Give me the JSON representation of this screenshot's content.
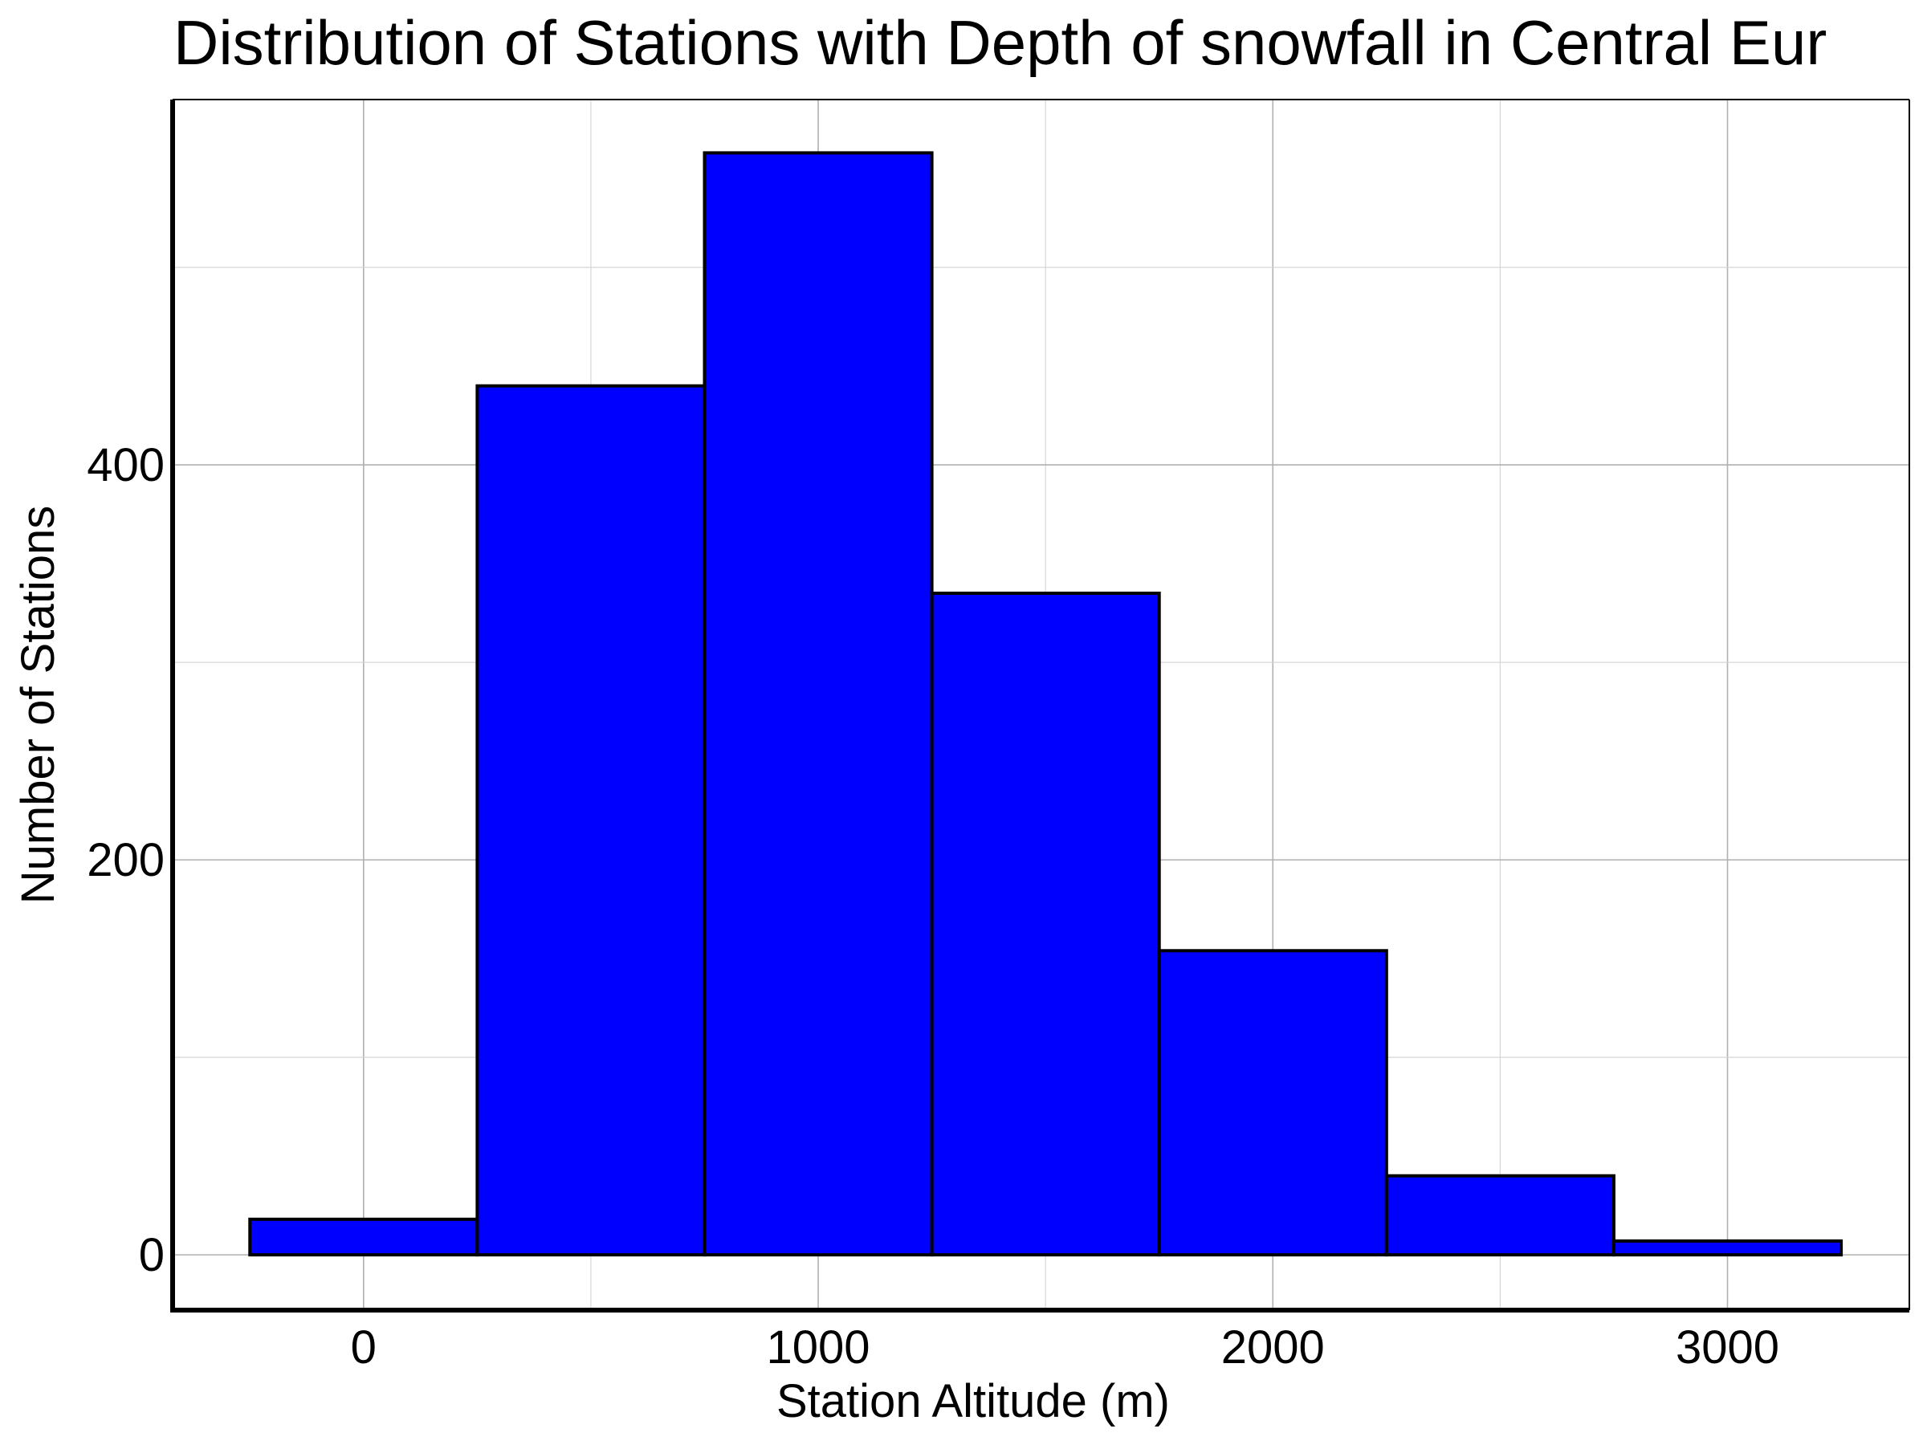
{
  "chart_data": {
    "type": "histogram",
    "title": "Distribution of Stations with Depth of snowfall in Central Eur",
    "xlabel": "Station Altitude (m)",
    "ylabel": "Number of Stations",
    "bin_width": 500,
    "bins": [
      {
        "start": -250,
        "end": 250,
        "count": 18
      },
      {
        "start": 250,
        "end": 750,
        "count": 440
      },
      {
        "start": 750,
        "end": 1250,
        "count": 558
      },
      {
        "start": 1250,
        "end": 1750,
        "count": 335
      },
      {
        "start": 1750,
        "end": 2250,
        "count": 154
      },
      {
        "start": 2250,
        "end": 2750,
        "count": 40
      },
      {
        "start": 2750,
        "end": 3250,
        "count": 7
      }
    ],
    "xlim": [
      -420,
      3400
    ],
    "ylim": [
      -28,
      585
    ],
    "x_ticks": [
      0,
      1000,
      2000,
      3000
    ],
    "x_tick_labels": [
      "0",
      "1000",
      "2000",
      "3000"
    ],
    "x_minor_grid": [
      500,
      1500,
      2500
    ],
    "y_ticks": [
      0,
      200,
      400
    ],
    "y_tick_labels": [
      "0",
      "200",
      "400"
    ],
    "y_minor_grid": [
      100,
      300,
      500
    ],
    "grid": true,
    "colors": {
      "bar_fill": "#0000ff",
      "bar_edge": "#000000",
      "grid": "#b0b0b0",
      "axis": "#000000",
      "background": "#ffffff"
    }
  }
}
